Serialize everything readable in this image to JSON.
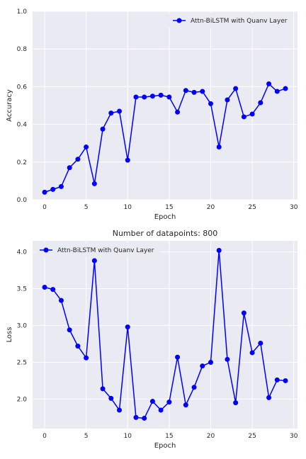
{
  "chart_data": [
    {
      "type": "line",
      "title": "",
      "xlabel": "Epoch",
      "ylabel": "Accuracy",
      "xlim": [
        -1.45,
        30.45
      ],
      "ylim": [
        0.0,
        1.0
      ],
      "xticks": [
        0,
        5,
        10,
        15,
        20,
        25,
        30
      ],
      "yticks": [
        0.0,
        0.2,
        0.4,
        0.6,
        0.8,
        1.0
      ],
      "xtick_labels": [
        "0",
        "5",
        "10",
        "15",
        "20",
        "25",
        "30"
      ],
      "ytick_labels": [
        "0.0",
        "0.2",
        "0.4",
        "0.6",
        "0.8",
        "1.0"
      ],
      "grid": true,
      "legend": "upper right",
      "series": [
        {
          "name": "Attn-BiLSTM with Quanv Layer",
          "color": "#0000ff",
          "x": [
            0,
            1,
            2,
            3,
            4,
            5,
            6,
            7,
            8,
            9,
            10,
            11,
            12,
            13,
            14,
            15,
            16,
            17,
            18,
            19,
            20,
            21,
            22,
            23,
            24,
            25,
            26,
            27,
            28,
            29
          ],
          "values": [
            0.04,
            0.055,
            0.07,
            0.17,
            0.215,
            0.28,
            0.085,
            0.375,
            0.46,
            0.47,
            0.21,
            0.545,
            0.545,
            0.55,
            0.555,
            0.545,
            0.465,
            0.58,
            0.57,
            0.575,
            0.51,
            0.28,
            0.53,
            0.59,
            0.44,
            0.455,
            0.515,
            0.615,
            0.575,
            0.59
          ]
        }
      ]
    },
    {
      "type": "line",
      "title": "Number of datapoints: 800",
      "xlabel": "Epoch",
      "ylabel": "Loss",
      "xlim": [
        -1.45,
        30.45
      ],
      "ylim": [
        1.6,
        4.15
      ],
      "xticks": [
        0,
        5,
        10,
        15,
        20,
        25,
        30
      ],
      "yticks": [
        2.0,
        2.5,
        3.0,
        3.5,
        4.0
      ],
      "xtick_labels": [
        "0",
        "5",
        "10",
        "15",
        "20",
        "25",
        "30"
      ],
      "ytick_labels": [
        "2.0",
        "2.5",
        "3.0",
        "3.5",
        "4.0"
      ],
      "grid": true,
      "legend": "upper left",
      "series": [
        {
          "name": "Attn-BiLSTM with Quanv Layer",
          "color": "#0000ff",
          "x": [
            0,
            1,
            2,
            3,
            4,
            5,
            6,
            7,
            8,
            9,
            10,
            11,
            12,
            13,
            14,
            15,
            16,
            17,
            18,
            19,
            20,
            21,
            22,
            23,
            24,
            25,
            26,
            27,
            28,
            29
          ],
          "values": [
            3.52,
            3.49,
            3.34,
            2.94,
            2.72,
            2.56,
            3.88,
            2.14,
            2.01,
            1.85,
            2.98,
            1.75,
            1.74,
            1.97,
            1.85,
            1.96,
            2.57,
            1.92,
            2.16,
            2.45,
            2.5,
            4.02,
            2.54,
            1.95,
            3.17,
            2.63,
            2.76,
            2.02,
            2.26,
            2.25
          ]
        }
      ]
    }
  ]
}
